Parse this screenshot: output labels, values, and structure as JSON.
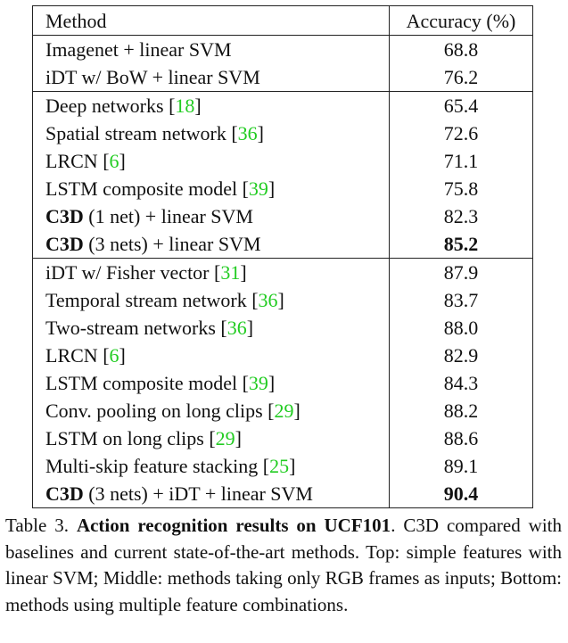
{
  "table": {
    "headers": {
      "method": "Method",
      "accuracy": "Accuracy (%)"
    },
    "groups": [
      [
        {
          "bold_prefix": "",
          "text": "Imagenet + linear SVM",
          "cite": "",
          "accuracy": "68.8",
          "bold_value": false
        },
        {
          "bold_prefix": "",
          "text": "iDT w/ BoW + linear SVM",
          "cite": "",
          "accuracy": "76.2",
          "bold_value": false
        }
      ],
      [
        {
          "bold_prefix": "",
          "text": "Deep networks ",
          "cite": "18",
          "accuracy": "65.4",
          "bold_value": false
        },
        {
          "bold_prefix": "",
          "text": "Spatial stream network ",
          "cite": "36",
          "accuracy": "72.6",
          "bold_value": false
        },
        {
          "bold_prefix": "",
          "text": "LRCN ",
          "cite": "6",
          "accuracy": "71.1",
          "bold_value": false
        },
        {
          "bold_prefix": "",
          "text": "LSTM composite model ",
          "cite": "39",
          "accuracy": "75.8",
          "bold_value": false
        },
        {
          "bold_prefix": "C3D",
          "text": " (1 net) + linear SVM",
          "cite": "",
          "accuracy": "82.3",
          "bold_value": false
        },
        {
          "bold_prefix": "C3D",
          "text": " (3 nets) + linear SVM",
          "cite": "",
          "accuracy": "85.2",
          "bold_value": true
        }
      ],
      [
        {
          "bold_prefix": "",
          "text": "iDT w/ Fisher vector ",
          "cite": "31",
          "accuracy": "87.9",
          "bold_value": false
        },
        {
          "bold_prefix": "",
          "text": "Temporal stream network ",
          "cite": "36",
          "accuracy": "83.7",
          "bold_value": false
        },
        {
          "bold_prefix": "",
          "text": "Two-stream networks ",
          "cite": "36",
          "accuracy": "88.0",
          "bold_value": false
        },
        {
          "bold_prefix": "",
          "text": "LRCN ",
          "cite": "6",
          "accuracy": "82.9",
          "bold_value": false
        },
        {
          "bold_prefix": "",
          "text": "LSTM composite model ",
          "cite": "39",
          "accuracy": "84.3",
          "bold_value": false
        },
        {
          "bold_prefix": "",
          "text": "Conv. pooling on long clips ",
          "cite": "29",
          "accuracy": "88.2",
          "bold_value": false
        },
        {
          "bold_prefix": "",
          "text": "LSTM on long clips ",
          "cite": "29",
          "accuracy": "88.6",
          "bold_value": false
        },
        {
          "bold_prefix": "",
          "text": "Multi-skip feature stacking ",
          "cite": "25",
          "accuracy": "89.1",
          "bold_value": false
        },
        {
          "bold_prefix": "C3D",
          "text": " (3 nets) + iDT + linear SVM",
          "cite": "",
          "accuracy": "90.4",
          "bold_value": true
        }
      ]
    ]
  },
  "caption": {
    "label": "Table 3. ",
    "title": "Action recognition results on UCF101",
    "body": ". C3D compared with baselines and current state-of-the-art methods. Top: simple features with linear SVM; Middle: methods taking only RGB frames as inputs; Bottom: methods using multiple feature combinations."
  }
}
